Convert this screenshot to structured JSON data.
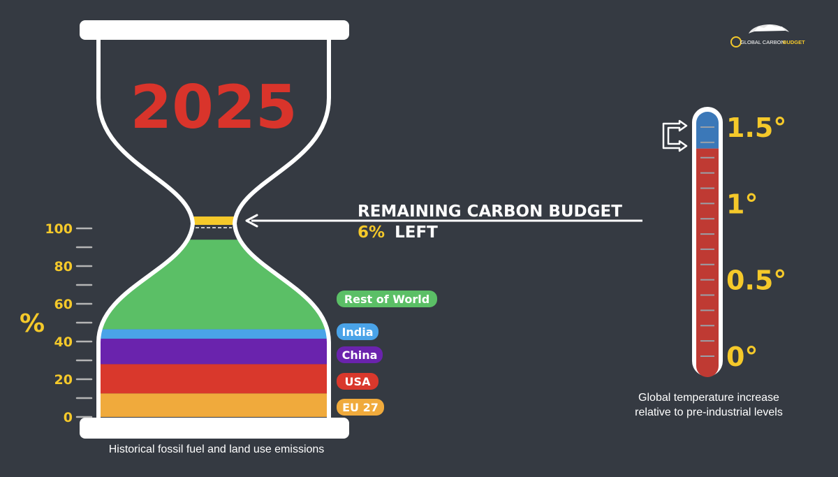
{
  "logo": {
    "text_global_carbon": "GLOBAL CARBON",
    "text_budget": "BUDGET"
  },
  "hourglass": {
    "year": "2025",
    "y_unit": "%",
    "remaining_title": "REMAINING CARBON BUDGET",
    "remaining_pct": "6%",
    "remaining_suffix": "LEFT",
    "caption": "Historical fossil fuel and land use emissions"
  },
  "thermometer": {
    "caption_line1": "Global temperature increase",
    "caption_line2": "relative to pre-industrial levels"
  },
  "colors": {
    "background": "#353a42",
    "year": "#d9342b",
    "accent_yellow": "#f5c92a",
    "white": "#ffffff",
    "eu": "#f0aa3c",
    "usa": "#d9382c",
    "china": "#6a23ad",
    "india": "#4aa3e8",
    "row": "#5bbf66",
    "remaining": "#f5c92a",
    "thermo_red": "#bf3a33",
    "thermo_blue": "#3b78b8"
  },
  "chart_data": [
    {
      "type": "area",
      "title": "Historical fossil fuel and land use emissions",
      "ylabel": "%",
      "ylim": [
        0,
        100
      ],
      "y_ticks": [
        0,
        20,
        40,
        60,
        80,
        100
      ],
      "y_tick_labels": [
        "0",
        "20",
        "40",
        "60",
        "80",
        "100"
      ],
      "stack": [
        {
          "name": "EU 27",
          "from": 0,
          "to": 12.5,
          "color": "#f0aa3c"
        },
        {
          "name": "USA",
          "from": 12.5,
          "to": 28,
          "color": "#d9382c"
        },
        {
          "name": "China",
          "from": 28,
          "to": 41.5,
          "color": "#6a23ad"
        },
        {
          "name": "India",
          "from": 41.5,
          "to": 46.5,
          "color": "#4aa3e8"
        },
        {
          "name": "Rest of World",
          "from": 46.5,
          "to": 94,
          "color": "#5bbf66"
        }
      ],
      "annotation": "REMAINING CARBON BUDGET 6% LEFT",
      "remaining_percent": 6
    },
    {
      "type": "bar",
      "title": "Global temperature increase relative to pre-industrial levels",
      "ylim": [
        0,
        1.5
      ],
      "y_tick_labels": [
        "0°",
        "0.5°",
        "1°",
        "1.5°"
      ],
      "y_ticks": [
        0,
        0.5,
        1,
        1.5
      ],
      "current_warming": 1.36,
      "remaining_range": [
        1.36,
        1.5
      ]
    }
  ]
}
